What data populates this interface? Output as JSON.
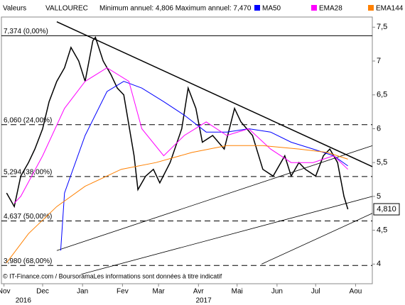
{
  "chart_data": {
    "type": "line",
    "header": {
      "field": "Valeurs",
      "title": "VALLOUREC",
      "range": "Minimum annuel: 4,806 Maximum annuel: 7,470"
    },
    "footer": "© IT-Finance.com / BoursoramaLes informations sont données à titre indicatif",
    "last_value": 4.81,
    "last_value_label": "4,810",
    "xlim": [
      -2,
      286
    ],
    "ylim": [
      3.71,
      7.65
    ],
    "xticks": [
      {
        "value": 0,
        "label": "Nov"
      },
      {
        "value": 30,
        "label": "Dec"
      },
      {
        "value": 61,
        "label": "Jan"
      },
      {
        "value": 92,
        "label": "Fev"
      },
      {
        "value": 120,
        "label": "Mar"
      },
      {
        "value": 151,
        "label": "Avr"
      },
      {
        "value": 181,
        "label": "Mai"
      },
      {
        "value": 212,
        "label": "Jun"
      },
      {
        "value": 242,
        "label": "Jul"
      },
      {
        "value": 273,
        "label": "Aou"
      }
    ],
    "years": [
      {
        "value": 15,
        "label": "2016"
      },
      {
        "value": 155,
        "label": "2017"
      }
    ],
    "yticks": [
      {
        "value": 4,
        "label": "4"
      },
      {
        "value": 4.5,
        "label": "4,5"
      },
      {
        "value": 5,
        "label": "5"
      },
      {
        "value": 5.5,
        "label": "5,5"
      },
      {
        "value": 6,
        "label": "6"
      },
      {
        "value": 6.5,
        "label": "6,5"
      },
      {
        "value": 7,
        "label": "7"
      },
      {
        "value": 7.5,
        "label": "7,5"
      }
    ],
    "levels": [
      {
        "value": 7.374,
        "label": "7,374 (0,00%)",
        "style": "solid"
      },
      {
        "value": 6.06,
        "label": "6,060 (24,00%)",
        "style": "dashed"
      },
      {
        "value": 5.294,
        "label": "5,294 (38,00%)",
        "style": "dashed"
      },
      {
        "value": 4.637,
        "label": "4,637 (50,00%)",
        "style": "dashed"
      },
      {
        "value": 3.98,
        "label": "3,980 (68,00%)",
        "style": "dashed"
      }
    ],
    "trendlines": [
      {
        "x": [
          41,
          286
        ],
        "values": [
          7.58,
          5.44
        ]
      },
      {
        "x": [
          41,
          286
        ],
        "values": [
          4.2,
          5.75
        ]
      },
      {
        "x": [
          60,
          286
        ],
        "values": [
          3.85,
          5.0
        ]
      },
      {
        "x": [
          200,
          286
        ],
        "values": [
          4.0,
          4.75
        ]
      }
    ],
    "series": [
      {
        "name": "VALLOUREC",
        "color": "#000000",
        "legend": false,
        "x": [
          2,
          8,
          13,
          19,
          24,
          30,
          35,
          41,
          47,
          52,
          58,
          63,
          69,
          71,
          77,
          83,
          88,
          93,
          101,
          104,
          110,
          116,
          121,
          129,
          138,
          143,
          149,
          154,
          162,
          171,
          179,
          184,
          193,
          201,
          209,
          218,
          223,
          229,
          234,
          242,
          248,
          253,
          259,
          264,
          267
        ],
        "values": [
          5.05,
          4.85,
          5.3,
          5.5,
          5.7,
          6.0,
          6.4,
          6.7,
          6.9,
          7.2,
          7.0,
          6.7,
          7.3,
          7.35,
          7.0,
          6.8,
          6.6,
          6.5,
          5.6,
          5.1,
          5.3,
          5.4,
          5.2,
          5.5,
          6.0,
          6.6,
          6.3,
          5.8,
          5.9,
          5.7,
          6.3,
          6.1,
          5.9,
          5.4,
          5.3,
          5.6,
          5.3,
          5.5,
          5.4,
          5.3,
          5.6,
          5.7,
          5.5,
          5.0,
          4.81
        ]
      },
      {
        "name": "MA50",
        "color": "#0000ff",
        "legend": true,
        "x": [
          44,
          47,
          63,
          80,
          93,
          107,
          124,
          140,
          157,
          173,
          190,
          207,
          223,
          240,
          256,
          267
        ],
        "values": [
          4.2,
          5.05,
          5.9,
          6.55,
          6.7,
          6.6,
          6.4,
          6.2,
          5.95,
          5.95,
          6.0,
          5.95,
          5.8,
          5.7,
          5.6,
          5.45
        ]
      },
      {
        "name": "EMA28",
        "color": "#ff00ff",
        "legend": true,
        "x": [
          8,
          13,
          30,
          47,
          63,
          80,
          97,
          107,
          124,
          140,
          157,
          173,
          190,
          207,
          223,
          240,
          256,
          267
        ],
        "values": [
          4.9,
          5.0,
          5.6,
          6.3,
          6.7,
          6.9,
          6.7,
          6.0,
          5.6,
          5.9,
          6.1,
          5.9,
          6.0,
          5.7,
          5.5,
          5.5,
          5.6,
          5.4
        ]
      },
      {
        "name": "EMA144",
        "color": "#ff8000",
        "legend": true,
        "x": [
          2,
          19,
          41,
          63,
          91,
          118,
          146,
          173,
          201,
          229,
          251,
          267
        ],
        "values": [
          4.02,
          4.45,
          4.85,
          5.15,
          5.4,
          5.5,
          5.65,
          5.75,
          5.75,
          5.7,
          5.65,
          5.55
        ]
      }
    ]
  }
}
